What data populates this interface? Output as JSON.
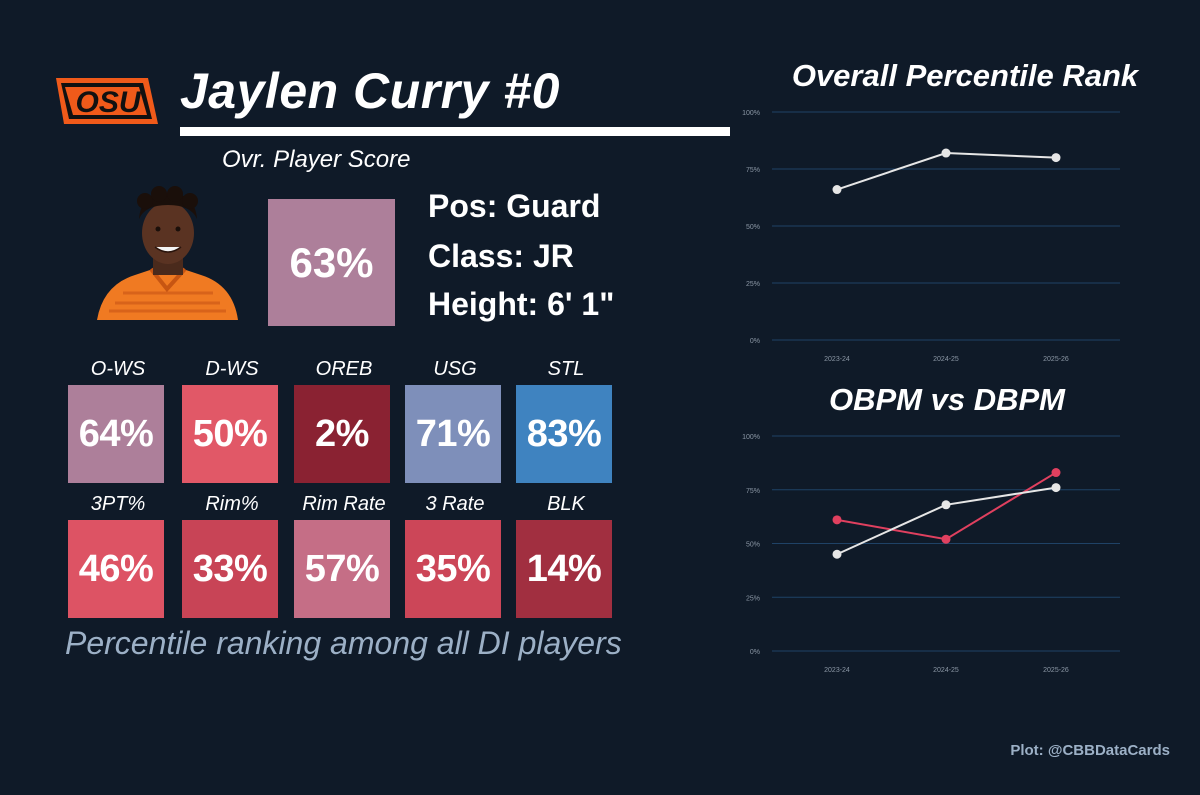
{
  "header": {
    "player_name": "Jaylen Curry #0",
    "logo_text": "OSU",
    "ovr_label": "Ovr. Player Score",
    "ovr_value": "63%",
    "ovr_color": "#ad7f9a"
  },
  "info": {
    "position": "Pos: Guard",
    "class": "Class: JR",
    "height": "Height: 6' 1\""
  },
  "stats_row1": [
    {
      "label": "O-WS",
      "value": "64%",
      "color": "#ad7f9a"
    },
    {
      "label": "D-WS",
      "value": "50%",
      "color": "#e15867"
    },
    {
      "label": "OREB",
      "value": "2%",
      "color": "#8a2232"
    },
    {
      "label": "USG",
      "value": "71%",
      "color": "#7e8fba"
    },
    {
      "label": "STL",
      "value": "83%",
      "color": "#3f83c0"
    }
  ],
  "stats_row2": [
    {
      "label": "3PT%",
      "value": "46%",
      "color": "#dd5364"
    },
    {
      "label": "Rim%",
      "value": "33%",
      "color": "#c84456"
    },
    {
      "label": "Rim Rate",
      "value": "57%",
      "color": "#c56e86"
    },
    {
      "label": "3 Rate",
      "value": "35%",
      "color": "#cc4658"
    },
    {
      "label": "BLK",
      "value": "14%",
      "color": "#a12f40"
    }
  ],
  "footnote": "Percentile ranking among all DI players",
  "credit": "Plot: @CBBDataCards",
  "chart_data": [
    {
      "type": "line",
      "title": "Overall Percentile Rank",
      "categories": [
        "2023-24",
        "2024-25",
        "2025-26"
      ],
      "yticks": [
        "0%",
        "25%",
        "50%",
        "75%",
        "100%"
      ],
      "ylim": [
        0,
        100
      ],
      "grid": true,
      "series": [
        {
          "values": [
            66,
            82,
            80
          ],
          "color": "#e6e6e6"
        }
      ]
    },
    {
      "type": "line",
      "title": "OBPM vs DBPM",
      "categories": [
        "2023-24",
        "2024-25",
        "2025-26"
      ],
      "yticks": [
        "0%",
        "25%",
        "50%",
        "75%",
        "100%"
      ],
      "ylim": [
        0,
        100
      ],
      "grid": true,
      "series": [
        {
          "values": [
            61,
            52,
            83
          ],
          "color": "#e0405f"
        },
        {
          "values": [
            45,
            68,
            76
          ],
          "color": "#e6e6e6"
        }
      ]
    }
  ]
}
